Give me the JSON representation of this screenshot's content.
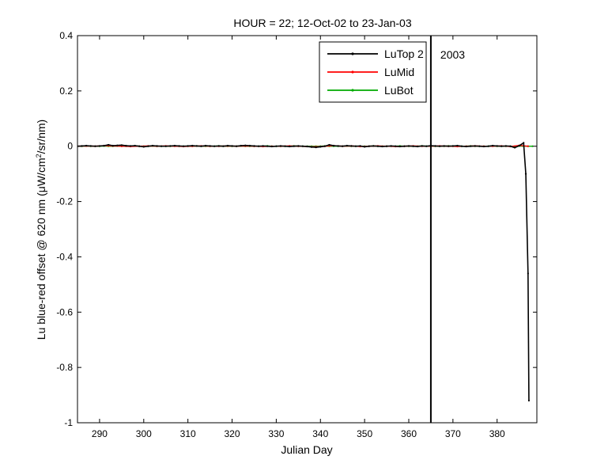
{
  "chart_data": {
    "type": "line",
    "title": "HOUR = 22; 12-Oct-02 to 23-Jan-03",
    "xlabel": "Julian Day",
    "ylabel_main": "Lu blue-red offset @ 620 nm ",
    "ylabel_mu": "μ",
    "ylabel_unit_a": "W/cm",
    "ylabel_sup": "2",
    "ylabel_unit_b": "/sr/nm)",
    "xlim": [
      285,
      389
    ],
    "ylim": [
      -1,
      0.4
    ],
    "xticks": [
      290,
      300,
      310,
      320,
      330,
      340,
      350,
      360,
      370,
      380
    ],
    "yticks": [
      -1,
      -0.8,
      -0.6,
      -0.4,
      -0.2,
      0,
      0.2,
      0.4
    ],
    "xtick_labels": [
      "290",
      "300",
      "310",
      "320",
      "330",
      "340",
      "350",
      "360",
      "370",
      "380"
    ],
    "ytick_labels": [
      "-1",
      "-0.8",
      "-0.6",
      "-0.4",
      "-0.2",
      "0",
      "0.2",
      "0.4"
    ],
    "vline_x": 365,
    "vline_label": "2003",
    "grid": false,
    "legend_position": "top-right",
    "series": [
      {
        "name": "LuTop 2",
        "color": "#000000",
        "x": [
          285,
          286,
          287,
          288,
          289,
          290,
          291,
          292,
          293,
          294,
          295,
          296,
          297,
          298,
          299,
          300,
          301,
          302,
          303,
          304,
          305,
          306,
          307,
          308,
          309,
          310,
          311,
          312,
          313,
          314,
          315,
          316,
          317,
          318,
          319,
          320,
          321,
          322,
          323,
          324,
          325,
          326,
          327,
          328,
          329,
          330,
          331,
          332,
          333,
          334,
          335,
          336,
          337,
          338,
          339,
          340,
          341,
          342,
          343,
          344,
          345,
          346,
          347,
          348,
          349,
          350,
          351,
          352,
          353,
          354,
          355,
          356,
          357,
          358,
          359,
          360,
          361,
          362,
          363,
          364,
          365,
          366,
          367,
          368,
          369,
          370,
          371,
          372,
          373,
          374,
          375,
          376,
          377,
          378,
          379,
          380,
          381,
          382,
          383,
          384,
          385,
          386,
          386.5,
          387,
          387.2
        ],
        "y": [
          0,
          0.001,
          0.002,
          0.001,
          0,
          0.001,
          0.002,
          0.005,
          0.002,
          0.003,
          0.004,
          0.002,
          0.001,
          0.002,
          0,
          -0.002,
          0,
          0.002,
          0.001,
          0,
          0,
          0.001,
          0.002,
          0.001,
          0,
          0.001,
          0.002,
          0.001,
          0,
          0.002,
          0.001,
          0,
          0.001,
          0,
          0.002,
          0.001,
          0,
          0.002,
          0.003,
          0.002,
          0.001,
          0,
          0.001,
          0,
          -0.001,
          0,
          0.001,
          0,
          -0.001,
          0,
          0.001,
          0,
          -0.001,
          -0.003,
          -0.004,
          -0.002,
          0,
          0.005,
          0.002,
          0.001,
          0,
          0.002,
          0.001,
          0,
          0.001,
          -0.002,
          0,
          0.001,
          0,
          -0.001,
          0,
          0.001,
          0,
          -0.001,
          0,
          0.001,
          0,
          -0.001,
          0.001,
          0,
          0.002,
          0.001,
          0,
          0.001,
          0,
          0.001,
          0.002,
          0,
          -0.001,
          0,
          0.001,
          0,
          -0.001,
          0,
          0.002,
          0.001,
          0,
          0.001,
          0,
          -0.005,
          0.002,
          0.012,
          -0.1,
          -0.46,
          -0.92
        ]
      },
      {
        "name": "LuMid",
        "color": "#ff0000",
        "x": [
          285,
          287,
          289,
          291,
          293,
          295,
          297,
          299,
          301,
          303,
          305,
          307,
          309,
          311,
          313,
          315,
          317,
          319,
          321,
          323,
          325,
          327,
          329,
          331,
          333,
          335,
          337,
          339,
          341,
          343,
          345,
          347,
          349,
          351,
          353,
          355,
          357,
          359,
          361,
          363,
          365,
          367,
          369,
          371,
          373,
          375,
          377,
          379,
          381,
          383,
          385,
          387
        ],
        "y": [
          0,
          0.001,
          0,
          0.002,
          0.001,
          0,
          -0.001,
          0,
          0.001,
          0,
          0.001,
          0,
          -0.001,
          0,
          0.001,
          0,
          0,
          0.001,
          0,
          0.001,
          0,
          -0.001,
          0,
          0,
          0.001,
          0,
          -0.001,
          -0.002,
          0,
          0.002,
          0,
          0.001,
          -0.001,
          0,
          0.001,
          0,
          -0.001,
          0,
          0.001,
          0,
          0,
          0.001,
          0,
          -0.001,
          0,
          0.001,
          0,
          0,
          0.001,
          -0.001,
          0.003,
          0
        ]
      },
      {
        "name": "LuBot",
        "color": "#00aa00",
        "x": [
          285,
          286,
          287,
          288,
          289,
          290,
          291,
          292,
          293,
          294,
          295,
          296,
          297,
          298,
          299,
          300,
          301,
          302,
          303,
          304,
          305,
          306,
          307,
          308,
          309,
          310,
          311,
          312,
          313,
          314,
          315,
          316,
          317,
          318,
          319,
          320,
          321,
          322,
          323,
          324,
          325,
          326,
          327,
          328,
          329,
          330,
          331,
          332,
          333,
          334,
          335,
          336,
          337,
          338,
          339,
          340,
          341,
          342,
          343,
          344,
          345,
          346,
          347,
          348,
          349,
          350,
          351,
          352,
          353,
          354,
          355,
          356,
          357,
          358,
          359,
          360,
          361,
          362,
          363,
          364,
          365,
          366,
          367,
          368,
          369,
          370,
          371,
          372,
          373,
          374,
          375,
          376,
          377,
          378,
          379,
          380,
          381,
          382,
          383,
          384,
          385,
          386,
          387,
          388
        ],
        "y": [
          0,
          0,
          0.001,
          0,
          0,
          0,
          0.001,
          0,
          0,
          0.001,
          0,
          0,
          0,
          0.001,
          0,
          0,
          0,
          0.001,
          0,
          0,
          0,
          0,
          0.001,
          0,
          0,
          0,
          0,
          0.001,
          0,
          0,
          0,
          0,
          0.001,
          0,
          0,
          0,
          0,
          0.001,
          0,
          0,
          0,
          0,
          0,
          0.001,
          0,
          0,
          0,
          0,
          0,
          0.001,
          0,
          0,
          0,
          0,
          0,
          0,
          0.001,
          0,
          0,
          0,
          0,
          0.001,
          0,
          0,
          0,
          0,
          0,
          0.001,
          0,
          0,
          0,
          0,
          0,
          0.001,
          0,
          0,
          0,
          0,
          0.001,
          0,
          0,
          0,
          0,
          0,
          0.001,
          0,
          0,
          0,
          0,
          0.001,
          0,
          0,
          0,
          0,
          0.001,
          0,
          0,
          0,
          0,
          0,
          0.001,
          0,
          0,
          0
        ]
      }
    ]
  }
}
